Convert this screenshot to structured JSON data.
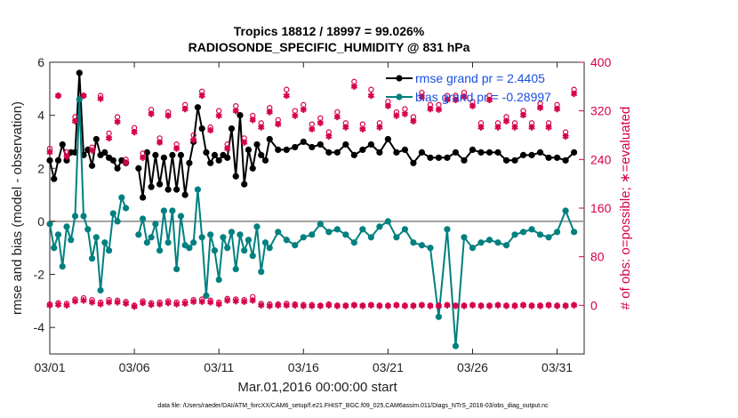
{
  "chart_data": {
    "type": "line",
    "title_line1": "Tropics 18812 / 18997 = 99.026%",
    "title_line2": "RADIOSONDE_SPECIFIC_HUMIDITY @ 831 hPa",
    "xlabel": "Mar.01,2016 00:00:00 start",
    "ylabel_left": "rmse and bias (model - observation)",
    "ylabel_right": "# of obs: o=possible; ∗=evaluated",
    "footnote": "data file: /Users/raeder/DAI/ATM_forcXX/CAM6_setup/f.e21.FHIST_BGC.f09_025.CAM6assim.011/Diags_NTrS_2016-03/obs_diag_output.nc",
    "xlim": [
      0,
      31.6
    ],
    "ylim_left": [
      -5,
      6
    ],
    "ylim_right": [
      -80,
      400
    ],
    "x_ticks": [
      0,
      5,
      10,
      15,
      20,
      25,
      30
    ],
    "x_tick_labels": [
      "03/01",
      "03/06",
      "03/11",
      "03/16",
      "03/21",
      "03/26",
      "03/31"
    ],
    "y_left_ticks": [
      -4,
      -2,
      0,
      2,
      4,
      6
    ],
    "y_left_tick_labels": [
      "-4",
      "-2",
      "0",
      "2",
      "4",
      "6"
    ],
    "y_right_ticks": [
      0,
      80,
      160,
      240,
      320,
      400
    ],
    "y_right_tick_labels": [
      "0",
      "80",
      "160",
      "240",
      "320",
      "400"
    ],
    "zero_line": 0,
    "colors": {
      "rmse": "#000000",
      "bias": "#00807f",
      "obs": "#d6004a",
      "zero": "#a0a0a0",
      "legend_text": "#1a4fe0"
    },
    "legend": [
      {
        "label": "rmse grand pr = 2.4405",
        "series": "rmse"
      },
      {
        "label": "bias grand pr = -0.28997",
        "series": "bias"
      }
    ],
    "series": [
      {
        "name": "rmse",
        "axis": "left",
        "x": [
          0,
          0.25,
          0.5,
          0.75,
          1,
          1.25,
          1.5,
          1.75,
          2,
          2.25,
          2.5,
          2.75,
          3,
          3.25,
          3.5,
          3.75,
          4,
          4.25,
          4.5,
          4.75,
          5,
          5.25,
          5.5,
          5.75,
          6,
          6.25,
          6.5,
          6.75,
          7,
          7.25,
          7.5,
          7.75,
          8,
          8.25,
          8.5,
          8.75,
          9,
          9.25,
          9.5,
          9.75,
          10,
          10.25,
          10.5,
          10.75,
          11,
          11.25,
          11.5,
          11.75,
          12,
          12.25,
          12.5,
          12.75,
          13,
          13.5,
          14,
          14.5,
          15,
          15.5,
          16,
          16.5,
          17,
          17.5,
          18,
          18.5,
          19,
          19.5,
          20,
          20.5,
          21,
          21.5,
          22,
          22.5,
          23,
          23.5,
          24,
          24.5,
          25,
          25.5,
          26,
          26.5,
          27,
          27.5,
          28,
          28.5,
          29,
          29.5,
          30,
          30.5,
          31
        ],
        "values": [
          2.3,
          1.6,
          2.3,
          2.9,
          2.3,
          2.6,
          2.6,
          5.6,
          2.5,
          2.7,
          2.1,
          3.1,
          2.5,
          2.6,
          2.4,
          2.3,
          2.0,
          2.3,
          2.2,
          null,
          null,
          2.0,
          0.9,
          2.6,
          1.3,
          2.5,
          1.4,
          2.4,
          1.2,
          2.5,
          1.2,
          2.5,
          1.0,
          2.2,
          3.0,
          4.3,
          3.5,
          2.6,
          2.2,
          2.5,
          2.3,
          2.5,
          2.4,
          3.5,
          1.7,
          4.0,
          1.4,
          2.7,
          2.0,
          2.9,
          2.5,
          2.3,
          3.1,
          2.7,
          2.7,
          2.8,
          3.0,
          2.8,
          2.9,
          2.6,
          2.6,
          2.9,
          2.5,
          2.7,
          2.9,
          2.6,
          3.1,
          2.6,
          2.7,
          2.2,
          2.6,
          2.4,
          2.4,
          2.4,
          2.6,
          2.3,
          2.7,
          2.6,
          2.6,
          2.6,
          2.3,
          2.3,
          2.5,
          2.5,
          2.6,
          2.4,
          2.4,
          2.3,
          2.6
        ]
      },
      {
        "name": "bias",
        "axis": "left",
        "x": [
          0,
          0.25,
          0.5,
          0.75,
          1,
          1.25,
          1.5,
          1.75,
          2,
          2.25,
          2.5,
          2.75,
          3,
          3.25,
          3.5,
          3.75,
          4,
          4.25,
          4.5,
          4.75,
          5,
          5.25,
          5.5,
          5.75,
          6,
          6.25,
          6.5,
          6.75,
          7,
          7.25,
          7.5,
          7.75,
          8,
          8.25,
          8.5,
          8.75,
          9,
          9.25,
          9.5,
          9.75,
          10,
          10.25,
          10.5,
          10.75,
          11,
          11.25,
          11.5,
          11.75,
          12,
          12.25,
          12.5,
          12.75,
          13,
          13.5,
          14,
          14.5,
          15,
          15.5,
          16,
          16.5,
          17,
          17.5,
          18,
          18.5,
          19,
          19.5,
          20,
          20.5,
          21,
          21.5,
          22,
          22.5,
          23,
          23.5,
          24,
          24.5,
          25,
          25.5,
          26,
          26.5,
          27,
          27.5,
          28,
          28.5,
          29,
          29.5,
          30,
          30.5,
          31
        ],
        "values": [
          -0.1,
          -1.0,
          -0.5,
          -1.7,
          -0.2,
          -0.7,
          0.2,
          4.6,
          0.2,
          -0.3,
          -1.4,
          -0.6,
          -2.6,
          -0.8,
          -1.1,
          0.3,
          0.0,
          0.9,
          0.5,
          null,
          null,
          -0.5,
          0.1,
          -0.8,
          -0.6,
          -0.1,
          -1.1,
          0.4,
          -0.8,
          0.4,
          -1.8,
          0.2,
          -0.9,
          -1.0,
          -0.8,
          1.2,
          -0.6,
          -2.8,
          -0.5,
          -1.1,
          -2.2,
          -0.6,
          -1.0,
          -0.4,
          -1.8,
          -0.5,
          -1.1,
          -0.7,
          -1.3,
          -0.2,
          -1.9,
          -0.8,
          -1.0,
          -0.4,
          -0.7,
          -0.9,
          -0.6,
          -0.5,
          -0.1,
          -0.4,
          -0.3,
          -0.5,
          -0.8,
          -0.3,
          -0.6,
          -0.2,
          0.0,
          -0.6,
          -0.3,
          -0.8,
          -0.9,
          -1.0,
          -3.6,
          -0.3,
          -4.7,
          -0.6,
          -1.0,
          -0.8,
          -0.7,
          -0.8,
          -0.9,
          -0.5,
          -0.4,
          -0.3,
          -0.5,
          -0.6,
          -0.4,
          0.4,
          -0.4
        ]
      },
      {
        "name": "obs_possible",
        "axis": "right",
        "x": [
          0,
          0.5,
          1,
          1.5,
          2,
          2.5,
          3,
          3.5,
          4,
          4.5,
          5,
          5.5,
          6,
          6.5,
          7,
          7.5,
          8,
          8.5,
          9,
          9.5,
          10,
          10.5,
          11,
          11.5,
          12,
          12.5,
          13,
          13.5,
          14,
          14.5,
          15,
          15.5,
          16,
          16.5,
          17,
          17.5,
          18,
          18.5,
          19,
          19.5,
          20,
          20.5,
          21,
          21.5,
          22,
          22.5,
          23,
          23.5,
          24,
          24.5,
          25,
          25.5,
          26,
          26.5,
          27,
          27.5,
          28,
          28.5,
          29,
          29.5,
          30,
          30.5,
          31
        ],
        "values": [
          258,
          345,
          252,
          310,
          345,
          260,
          345,
          283,
          310,
          240,
          292,
          250,
          322,
          275,
          318,
          265,
          330,
          280,
          352,
          293,
          320,
          265,
          328,
          275,
          312,
          300,
          325,
          305,
          355,
          320,
          330,
          298,
          308,
          285,
          318,
          300,
          368,
          298,
          355,
          300,
          335,
          318,
          323,
          310,
          350,
          330,
          330,
          345,
          345,
          350,
          335,
          300,
          345,
          300,
          310,
          300,
          320,
          300,
          332,
          300,
          330,
          285,
          355
        ]
      },
      {
        "name": "obs_evaluated",
        "axis": "right",
        "x": [
          0,
          0.5,
          1,
          1.5,
          2,
          2.5,
          3,
          3.5,
          4,
          4.5,
          5,
          5.5,
          6,
          6.5,
          7,
          7.5,
          8,
          8.5,
          9,
          9.5,
          10,
          10.5,
          11,
          11.5,
          12,
          12.5,
          13,
          13.5,
          14,
          14.5,
          15,
          15.5,
          16,
          16.5,
          17,
          17.5,
          18,
          18.5,
          19,
          19.5,
          20,
          20.5,
          21,
          21.5,
          22,
          22.5,
          23,
          23.5,
          24,
          24.5,
          25,
          25.5,
          26,
          26.5,
          27,
          27.5,
          28,
          28.5,
          29,
          29.5,
          30,
          30.5,
          31
        ],
        "values": [
          252,
          345,
          245,
          303,
          345,
          255,
          340,
          275,
          302,
          235,
          285,
          243,
          315,
          268,
          312,
          258,
          323,
          272,
          345,
          288,
          312,
          258,
          320,
          268,
          305,
          293,
          318,
          298,
          345,
          312,
          322,
          290,
          300,
          278,
          310,
          293,
          360,
          290,
          345,
          293,
          328,
          312,
          315,
          303,
          343,
          323,
          322,
          338,
          338,
          343,
          328,
          293,
          338,
          293,
          303,
          293,
          313,
          293,
          325,
          293,
          323,
          278,
          348
        ]
      },
      {
        "name": "obs_possible_low",
        "axis": "right",
        "x": [
          0,
          0.5,
          1,
          1.5,
          2,
          2.5,
          3,
          3.5,
          4,
          4.5,
          5,
          5.5,
          6,
          6.5,
          7,
          7.5,
          8,
          8.5,
          9,
          9.5,
          10,
          10.5,
          11,
          11.5,
          12,
          12.5,
          13,
          13.5,
          14,
          14.5,
          15,
          15.5,
          16,
          16.5,
          17,
          17.5,
          18,
          18.5,
          19,
          19.5,
          20,
          20.5,
          21,
          21.5,
          22,
          22.5,
          23,
          23.5,
          24,
          24.5,
          25,
          25.5,
          26,
          26.5,
          27,
          27.5,
          28,
          28.5,
          29,
          29.5,
          30,
          30.5,
          31
        ],
        "values": [
          2,
          4,
          3,
          10,
          12,
          9,
          5,
          9,
          8,
          6,
          0,
          7,
          4,
          5,
          7,
          5,
          6,
          9,
          10,
          8,
          5,
          11,
          10,
          9,
          14,
          3,
          2,
          2,
          3,
          2,
          1,
          1,
          0,
          2,
          0,
          0,
          1,
          0,
          1,
          0,
          0,
          1,
          0,
          0,
          1,
          0,
          0,
          1,
          0,
          0,
          1,
          0,
          0,
          1,
          0,
          0,
          1,
          0,
          0,
          1,
          0,
          0,
          1
        ]
      },
      {
        "name": "obs_evaluated_low",
        "axis": "right",
        "x": [
          0,
          0.5,
          1,
          1.5,
          2,
          2.5,
          3,
          3.5,
          4,
          4.5,
          5,
          5.5,
          6,
          6.5,
          7,
          7.5,
          8,
          8.5,
          9,
          9.5,
          10,
          10.5,
          11,
          11.5,
          12,
          12.5,
          13,
          13.5,
          14,
          14.5,
          15,
          15.5,
          16,
          16.5,
          17,
          17.5,
          18,
          18.5,
          19,
          19.5,
          20,
          20.5,
          21,
          21.5,
          22,
          22.5,
          23,
          23.5,
          24,
          24.5,
          25,
          25.5,
          26,
          26.5,
          27,
          27.5,
          28,
          28.5,
          29,
          29.5,
          30,
          30.5,
          31
        ],
        "values": [
          0,
          1,
          0,
          7,
          8,
          5,
          2,
          5,
          5,
          3,
          -2,
          4,
          1,
          2,
          4,
          2,
          3,
          6,
          6,
          5,
          2,
          8,
          7,
          6,
          8,
          0,
          -1,
          0,
          0,
          0,
          -1,
          -1,
          -1,
          0,
          -1,
          -1,
          0,
          -1,
          0,
          -1,
          -1,
          0,
          -1,
          -1,
          0,
          -1,
          -1,
          0,
          -1,
          -1,
          0,
          -1,
          -1,
          0,
          -1,
          -1,
          0,
          -1,
          -1,
          0,
          -1,
          -1,
          0
        ]
      }
    ]
  }
}
